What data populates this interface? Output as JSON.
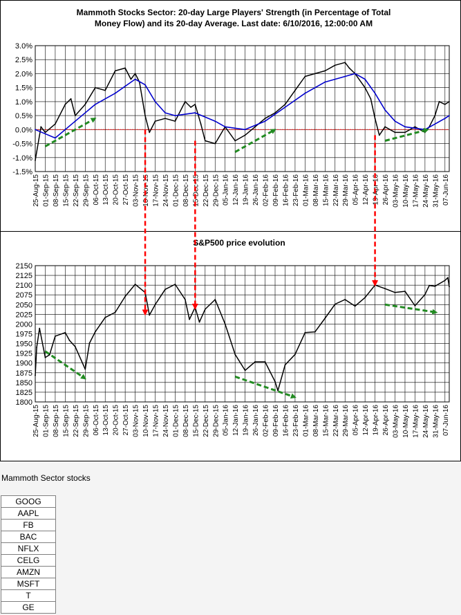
{
  "chart_data": [
    {
      "type": "line",
      "title": "Mammoth Stocks Sector: 20-day Large Players' Strength (in Percentage of Total Money Flow) and its 20-day Average. Last date: 6/10/2016, 12:00:00 AM",
      "title_lines": [
        "Mammoth Stocks Sector: 20-day Large Players' Strength (in Percentage of Total",
        "Money Flow) and its 20-day Average. Last date: 6/10/2016, 12:00:00 AM"
      ],
      "y_ticks": [
        "3.0%",
        "2.5%",
        "2.0%",
        "1.5%",
        "1.0%",
        "0.5%",
        "0.0%",
        "-0.5%",
        "-1.0%",
        "-1.5%"
      ],
      "ylim": [
        -1.5,
        3.0
      ],
      "x_tick_labels": [
        "25-Aug-15",
        "01-Sep-15",
        "08-Sep-15",
        "15-Sep-15",
        "22-Sep-15",
        "29-Sep-15",
        "06-Oct-15",
        "13-Oct-15",
        "20-Oct-15",
        "27-Oct-15",
        "03-Nov-15",
        "10-Nov-15",
        "17-Nov-15",
        "24-Nov-15",
        "01-Dec-15",
        "08-Dec-15",
        "15-Dec-15",
        "22-Dec-15",
        "29-Dec-15",
        "05-Jan-16",
        "12-Jan-16",
        "19-Jan-16",
        "26-Jan-16",
        "02-Feb-16",
        "09-Feb-16",
        "16-Feb-16",
        "23-Feb-16",
        "01-Mar-16",
        "08-Mar-16",
        "15-Mar-16",
        "22-Mar-16",
        "29-Mar-16",
        "05-Apr-16",
        "12-Apr-16",
        "19-Apr-16",
        "26-Apr-16",
        "03-May-16",
        "10-May-16",
        "17-May-16",
        "24-May-16",
        "31-May-16",
        "07-Jun-16"
      ],
      "grid": true,
      "colors": {
        "strength": "#000000",
        "average": "#0000cc",
        "zero_line": "#ff0000",
        "trend_arrow": "#228b22",
        "marker_arrow": "#ff0000"
      },
      "series": [
        {
          "role": "strength",
          "x": [
            "25-Aug-15",
            "29-Aug-15",
            "01-Sep-15",
            "08-Sep-15",
            "15-Sep-15",
            "19-Sep-15",
            "22-Sep-15",
            "29-Sep-15",
            "06-Oct-15",
            "13-Oct-15",
            "20-Oct-15",
            "27-Oct-15",
            "31-Oct-15",
            "03-Nov-15",
            "06-Nov-15",
            "10-Nov-15",
            "13-Nov-15",
            "17-Nov-15",
            "24-Nov-15",
            "01-Dec-15",
            "08-Dec-15",
            "12-Dec-15",
            "15-Dec-15",
            "19-Dec-15",
            "22-Dec-15",
            "29-Dec-15",
            "05-Jan-16",
            "12-Jan-16",
            "19-Jan-16",
            "26-Jan-16",
            "02-Feb-16",
            "09-Feb-16",
            "16-Feb-16",
            "23-Feb-16",
            "01-Mar-16",
            "08-Mar-16",
            "15-Mar-16",
            "22-Mar-16",
            "29-Mar-16",
            "01-Apr-16",
            "05-Apr-16",
            "12-Apr-16",
            "16-Apr-16",
            "19-Apr-16",
            "22-Apr-16",
            "26-Apr-16",
            "03-May-16",
            "10-May-16",
            "17-May-16",
            "24-May-16",
            "27-May-16",
            "31-May-16",
            "03-Jun-16",
            "07-Jun-16",
            "10-Jun-16"
          ],
          "values": [
            -1.1,
            0.1,
            -0.1,
            0.2,
            0.9,
            1.1,
            0.5,
            0.9,
            1.5,
            1.4,
            2.1,
            2.2,
            1.8,
            2.0,
            1.7,
            0.5,
            -0.1,
            0.3,
            0.4,
            0.3,
            1.0,
            0.8,
            0.9,
            0.2,
            -0.4,
            -0.5,
            0.1,
            -0.4,
            -0.2,
            0.1,
            0.4,
            0.6,
            0.9,
            1.4,
            1.9,
            2.0,
            2.1,
            2.3,
            2.4,
            2.2,
            2.0,
            1.5,
            1.1,
            0.4,
            -0.2,
            0.1,
            -0.1,
            -0.1,
            0.1,
            -0.1,
            0.1,
            0.5,
            1.0,
            0.9,
            1.0
          ]
        },
        {
          "role": "average",
          "x": [
            "25-Aug-15",
            "08-Sep-15",
            "22-Sep-15",
            "06-Oct-15",
            "20-Oct-15",
            "03-Nov-15",
            "10-Nov-15",
            "17-Nov-15",
            "24-Nov-15",
            "01-Dec-15",
            "15-Dec-15",
            "29-Dec-15",
            "05-Jan-16",
            "19-Jan-16",
            "02-Feb-16",
            "16-Feb-16",
            "01-Mar-16",
            "15-Mar-16",
            "29-Mar-16",
            "05-Apr-16",
            "12-Apr-16",
            "19-Apr-16",
            "26-Apr-16",
            "03-May-16",
            "10-May-16",
            "24-May-16",
            "07-Jun-16",
            "10-Jun-16"
          ],
          "values": [
            0.0,
            -0.3,
            0.3,
            0.9,
            1.3,
            1.8,
            1.6,
            1.0,
            0.6,
            0.5,
            0.6,
            0.3,
            0.1,
            0.0,
            0.3,
            0.8,
            1.3,
            1.7,
            1.9,
            2.0,
            1.8,
            1.3,
            0.7,
            0.3,
            0.1,
            0.0,
            0.4,
            0.5
          ]
        }
      ],
      "trend_arrows": [
        {
          "from": [
            "01-Sep-15",
            -0.6
          ],
          "to": [
            "06-Oct-15",
            0.4
          ]
        },
        {
          "from": [
            "12-Jan-16",
            -0.8
          ],
          "to": [
            "09-Feb-16",
            0.0
          ]
        },
        {
          "from": [
            "26-Apr-16",
            -0.4
          ],
          "to": [
            "26-May-16",
            0.0
          ]
        }
      ]
    },
    {
      "type": "line",
      "title": "S&P500 price evolution",
      "y_ticks": [
        "2150",
        "2125",
        "2100",
        "2075",
        "2050",
        "2025",
        "2000",
        "1975",
        "1950",
        "1925",
        "1900",
        "1875",
        "1850",
        "1825",
        "1800"
      ],
      "ylim": [
        1800,
        2150
      ],
      "x_tick_labels": [
        "25-Aug-15",
        "01-Sep-15",
        "08-Sep-15",
        "15-Sep-15",
        "22-Sep-15",
        "29-Sep-15",
        "06-Oct-15",
        "13-Oct-15",
        "20-Oct-15",
        "27-Oct-15",
        "03-Nov-15",
        "10-Nov-15",
        "17-Nov-15",
        "24-Nov-15",
        "01-Dec-15",
        "08-Dec-15",
        "15-Dec-15",
        "22-Dec-15",
        "29-Dec-15",
        "05-Jan-16",
        "12-Jan-16",
        "19-Jan-16",
        "26-Jan-16",
        "02-Feb-16",
        "09-Feb-16",
        "16-Feb-16",
        "23-Feb-16",
        "01-Mar-16",
        "08-Mar-16",
        "15-Mar-16",
        "22-Mar-16",
        "29-Mar-16",
        "05-Apr-16",
        "12-Apr-16",
        "19-Apr-16",
        "26-Apr-16",
        "03-May-16",
        "10-May-16",
        "17-May-16",
        "24-May-16",
        "31-May-16",
        "07-Jun-16"
      ],
      "grid": true,
      "series": [
        {
          "role": "price",
          "x": [
            "25-Aug-15",
            "26-Aug-15",
            "28-Aug-15",
            "01-Sep-15",
            "04-Sep-15",
            "08-Sep-15",
            "15-Sep-15",
            "18-Sep-15",
            "22-Sep-15",
            "29-Sep-15",
            "02-Oct-15",
            "06-Oct-15",
            "13-Oct-15",
            "20-Oct-15",
            "27-Oct-15",
            "03-Nov-15",
            "10-Nov-15",
            "13-Nov-15",
            "17-Nov-15",
            "24-Nov-15",
            "01-Dec-15",
            "08-Dec-15",
            "11-Dec-15",
            "15-Dec-15",
            "18-Dec-15",
            "22-Dec-15",
            "29-Dec-15",
            "05-Jan-16",
            "12-Jan-16",
            "19-Jan-16",
            "26-Jan-16",
            "02-Feb-16",
            "09-Feb-16",
            "11-Feb-16",
            "16-Feb-16",
            "23-Feb-16",
            "01-Mar-16",
            "08-Mar-16",
            "15-Mar-16",
            "22-Mar-16",
            "29-Mar-16",
            "05-Apr-16",
            "12-Apr-16",
            "19-Apr-16",
            "26-Apr-16",
            "03-May-16",
            "10-May-16",
            "17-May-16",
            "24-May-16",
            "27-May-16",
            "31-May-16",
            "07-Jun-16",
            "09-Jun-16",
            "10-Jun-16"
          ],
          "values": [
            1868,
            1940,
            1989,
            1914,
            1921,
            1969,
            1978,
            1958,
            1942,
            1884,
            1951,
            1980,
            2017,
            2030,
            2071,
            2102,
            2081,
            2023,
            2050,
            2089,
            2102,
            2063,
            2012,
            2043,
            2005,
            2038,
            2063,
            2000,
            1922,
            1881,
            1903,
            1903,
            1852,
            1829,
            1895,
            1922,
            1978,
            1980,
            2015,
            2051,
            2063,
            2046,
            2068,
            2100,
            2091,
            2081,
            2084,
            2047,
            2076,
            2099,
            2097,
            2112,
            2119,
            2096
          ]
        }
      ],
      "trend_arrows": [
        {
          "from": [
            "01-Sep-15",
            1930
          ],
          "to": [
            "29-Sep-15",
            1860
          ]
        },
        {
          "from": [
            "12-Jan-16",
            1865
          ],
          "to": [
            "23-Feb-16",
            1812
          ]
        },
        {
          "from": [
            "26-Apr-16",
            2050
          ],
          "to": [
            "01-Jun-16",
            2030
          ]
        }
      ]
    }
  ],
  "marker_arrows": [
    {
      "from": [
        "10-Nov-15",
        0.0
      ],
      "to": [
        "10-Nov-15",
        2025
      ]
    },
    {
      "from": [
        "15-Dec-15",
        -0.4
      ],
      "to": [
        "15-Dec-15",
        2040
      ]
    },
    {
      "from": [
        "19-Apr-16",
        -0.2
      ],
      "to": [
        "19-Apr-16",
        2100
      ]
    }
  ],
  "sector_panel": {
    "title": "Mammoth Sector stocks",
    "stocks": [
      "GOOG",
      "AAPL",
      "FB",
      "BAC",
      "NFLX",
      "CELG",
      "AMZN",
      "MSFT",
      "T",
      "GE"
    ]
  }
}
